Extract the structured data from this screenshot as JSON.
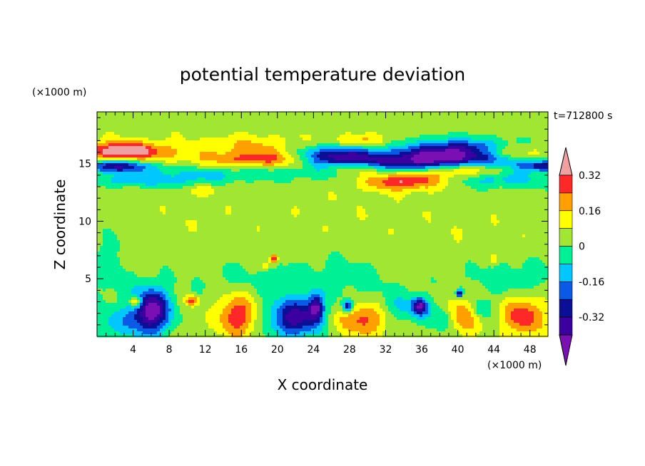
{
  "chart_data": {
    "type": "heatmap",
    "title": "potential temperature deviation",
    "xlabel": "X coordinate",
    "ylabel": "Z coordinate",
    "x_unit": "(×1000 m)",
    "y_unit": "(×1000 m)",
    "time_label": "t=712800 s",
    "xlim": [
      0,
      50
    ],
    "ylim": [
      0,
      19.5
    ],
    "x_ticks": [
      4,
      8,
      12,
      16,
      20,
      24,
      28,
      32,
      36,
      40,
      44,
      48
    ],
    "y_ticks": [
      5,
      10,
      15
    ],
    "colorbar": {
      "levels": [
        -0.4,
        -0.32,
        -0.24,
        -0.16,
        -0.08,
        0,
        0.08,
        0.16,
        0.24,
        0.32,
        0.4
      ],
      "labels": [
        "-0.32",
        "-0.16",
        "0",
        "0.16",
        "0.32"
      ],
      "label_values": [
        -0.32,
        -0.16,
        0,
        0.16,
        0.32
      ],
      "colors": [
        "#7a0fb4",
        "#3c00a0",
        "#0a0f96",
        "#0a5ae6",
        "#00c8ff",
        "#00f096",
        "#a0e632",
        "#ffff00",
        "#ffa000",
        "#ff2828",
        "#f0a0a0"
      ]
    },
    "background_value": 0.04,
    "features": [
      {
        "x": 25,
        "z": 18.3,
        "sx": 30,
        "sz": 0.9,
        "v": 0.05
      },
      {
        "x": 3,
        "z": 16.1,
        "sx": 3,
        "sz": 0.5,
        "v": 0.36
      },
      {
        "x": 45,
        "z": 16.0,
        "sx": 3,
        "sz": 0.4,
        "v": 0.22
      },
      {
        "x": 4,
        "z": 15.8,
        "sx": 5,
        "sz": 0.9,
        "v": 0.12
      },
      {
        "x": 19,
        "z": 15.4,
        "sx": 5,
        "sz": 0.6,
        "v": 0.3
      },
      {
        "x": 17,
        "z": 16.8,
        "sx": 4,
        "sz": 0.5,
        "v": 0.14
      },
      {
        "x": 29,
        "z": 17.0,
        "sx": 2,
        "sz": 0.35,
        "v": 0.18
      },
      {
        "x": 2,
        "z": 14.8,
        "sx": 3,
        "sz": 0.4,
        "v": -0.34
      },
      {
        "x": 49.5,
        "z": 14.8,
        "sx": 2,
        "sz": 0.35,
        "v": -0.3
      },
      {
        "x": 33,
        "z": 15.0,
        "sx": 6,
        "sz": 0.7,
        "v": -0.34
      },
      {
        "x": 40,
        "z": 15.9,
        "sx": 4,
        "sz": 0.8,
        "v": -0.42
      },
      {
        "x": 26,
        "z": 15.7,
        "sx": 3,
        "sz": 0.6,
        "v": -0.32
      },
      {
        "x": 14,
        "z": 14.2,
        "sx": 8,
        "sz": 0.5,
        "v": -0.09
      },
      {
        "x": 45,
        "z": 13.6,
        "sx": 4,
        "sz": 0.5,
        "v": -0.12
      },
      {
        "x": 5,
        "z": 13.5,
        "sx": 5,
        "sz": 0.4,
        "v": -0.1
      },
      {
        "x": 34,
        "z": 13.6,
        "sx": 3,
        "sz": 0.6,
        "v": 0.36
      },
      {
        "x": 40,
        "z": 14.5,
        "sx": 3,
        "sz": 0.5,
        "v": 0.34
      },
      {
        "x": 29,
        "z": 14.6,
        "sx": 2.5,
        "sz": 0.4,
        "v": 0.3
      },
      {
        "x": 10,
        "z": 10,
        "sx": 6,
        "sz": 1.5,
        "v": 0.06
      },
      {
        "x": 28,
        "z": 11,
        "sx": 6,
        "sz": 2,
        "v": 0.06
      },
      {
        "x": 42,
        "z": 9,
        "sx": 5,
        "sz": 2,
        "v": 0.06
      },
      {
        "x": 1.5,
        "z": 6,
        "sx": 1.5,
        "sz": 2,
        "v": -0.05
      },
      {
        "x": 18,
        "z": 5,
        "sx": 6,
        "sz": 1.2,
        "v": -0.02
      },
      {
        "x": 28,
        "z": 5,
        "sx": 4,
        "sz": 1.5,
        "v": -0.02
      },
      {
        "x": 46,
        "z": 5,
        "sx": 4,
        "sz": 1.2,
        "v": -0.05
      },
      {
        "x": 6,
        "z": 2.2,
        "sx": 1.5,
        "sz": 1.4,
        "v": -0.45
      },
      {
        "x": 2,
        "z": 1.1,
        "sx": 2,
        "sz": 1,
        "v": -0.1
      },
      {
        "x": 4.3,
        "z": 3.0,
        "sx": 0.5,
        "sz": 0.35,
        "v": 0.36
      },
      {
        "x": 10.5,
        "z": 3.1,
        "sx": 0.5,
        "sz": 0.3,
        "v": 0.3
      },
      {
        "x": 15.5,
        "z": 1.8,
        "sx": 1.5,
        "sz": 1.3,
        "v": 0.3
      },
      {
        "x": 22,
        "z": 1.6,
        "sx": 2,
        "sz": 1.2,
        "v": -0.36
      },
      {
        "x": 24.3,
        "z": 2.5,
        "sx": 0.6,
        "sz": 0.8,
        "v": -0.3
      },
      {
        "x": 29.5,
        "z": 1.5,
        "sx": 2,
        "sz": 1,
        "v": 0.28
      },
      {
        "x": 27.8,
        "z": 2.6,
        "sx": 0.4,
        "sz": 0.4,
        "v": -0.34
      },
      {
        "x": 34,
        "z": 2.4,
        "sx": 2,
        "sz": 1,
        "v": -0.1
      },
      {
        "x": 35.8,
        "z": 2.6,
        "sx": 0.6,
        "sz": 0.5,
        "v": -0.34
      },
      {
        "x": 40.5,
        "z": 1.8,
        "sx": 1.3,
        "sz": 1.1,
        "v": 0.26
      },
      {
        "x": 38.5,
        "z": 1.5,
        "sx": 1,
        "sz": 0.8,
        "v": -0.12
      },
      {
        "x": 42.5,
        "z": 2.4,
        "sx": 0.8,
        "sz": 0.6,
        "v": -0.12
      },
      {
        "x": 47.3,
        "z": 1.8,
        "sx": 1.6,
        "sz": 1.2,
        "v": 0.3
      },
      {
        "x": 19.6,
        "z": 6.7,
        "sx": 0.3,
        "sz": 0.3,
        "v": 0.36
      },
      {
        "x": 18.7,
        "z": 6.2,
        "sx": 0.25,
        "sz": 0.25,
        "v": 0.22
      },
      {
        "x": 44,
        "z": 6.6,
        "sx": 0.25,
        "sz": 0.25,
        "v": 0.2
      },
      {
        "x": 40.2,
        "z": 3.7,
        "sx": 0.25,
        "sz": 0.25,
        "v": -0.34
      },
      {
        "x": 12,
        "z": 12.7,
        "sx": 1,
        "sz": 0.3,
        "v": 0.14
      }
    ]
  }
}
